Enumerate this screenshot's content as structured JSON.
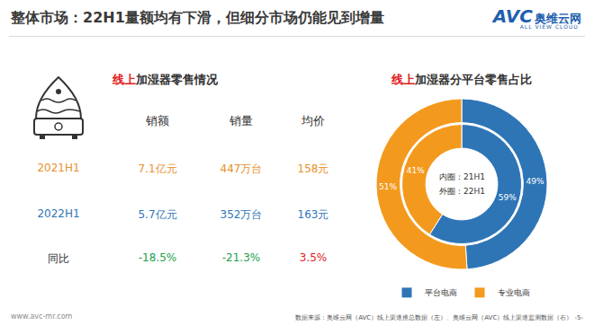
{
  "header": {
    "title": "整体市场：22H1量额均有下滑，但细分市场仍能见到增量",
    "logo": {
      "main": "AVC",
      "cn": "奥维云网",
      "en": "ALL VIEW CLOUD"
    }
  },
  "table": {
    "title": "线上加湿器零售情况",
    "title_highlight": "线上",
    "columns": [
      "销额",
      "销量",
      "均价"
    ],
    "rows": [
      {
        "label": "2021H1",
        "cells": [
          "7.1亿元",
          "447万台",
          "158元"
        ],
        "color": "#e8902a"
      },
      {
        "label": "2022H1",
        "cells": [
          "5.7亿元",
          "352万台",
          "163元"
        ],
        "color": "#2e75b6"
      },
      {
        "label": "同比",
        "cells": [
          "-18.5%",
          "-21.3%",
          "3.5%"
        ],
        "color": "#333333",
        "colors": [
          "#22a04b",
          "#22a04b",
          "#e02020"
        ]
      }
    ]
  },
  "chart_data": {
    "type": "pie",
    "title": "线上加湿器分平台零售占比",
    "title_highlight": "线上",
    "categories": [
      "平台电商",
      "专业电商"
    ],
    "colors": [
      "#2e75b6",
      "#f39a1e"
    ],
    "series": [
      {
        "ring_label": "内圈：21H1",
        "values": [
          59,
          41
        ],
        "value_labels": [
          "59%",
          "41%"
        ]
      },
      {
        "ring_label": "外圈：22H1",
        "values": [
          49,
          51
        ],
        "value_labels": [
          "49%",
          "51%"
        ]
      }
    ],
    "data_labels": true,
    "legend": "bottom"
  },
  "footer": {
    "url": "www.avc-mr.com",
    "source": "数据来源：奥维云网（AVC）线上渠道推总数据（左）、奥维云网（AVC）线上渠道监测数据（右）",
    "page": "-5-"
  }
}
